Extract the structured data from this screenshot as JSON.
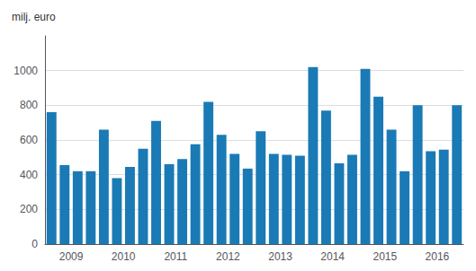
{
  "chart_data": {
    "type": "bar",
    "ylabel": "milj. euro",
    "categories": [
      null,
      "2009",
      null,
      null,
      null,
      "2010",
      null,
      null,
      null,
      "2011",
      null,
      null,
      null,
      "2012",
      null,
      null,
      null,
      "2013",
      null,
      null,
      null,
      "2014",
      null,
      null,
      null,
      "2015",
      null,
      null,
      null,
      "2016",
      null,
      null
    ],
    "values": [
      760,
      455,
      420,
      420,
      660,
      380,
      445,
      550,
      710,
      460,
      490,
      575,
      820,
      630,
      520,
      435,
      650,
      520,
      515,
      510,
      1020,
      770,
      465,
      515,
      1010,
      850,
      660,
      420,
      800,
      535,
      545,
      800
    ],
    "color": "#1a7ab5",
    "ylim": [
      0,
      1200
    ],
    "yticks": [
      0,
      200,
      400,
      600,
      800,
      1000
    ],
    "grid": true
  }
}
